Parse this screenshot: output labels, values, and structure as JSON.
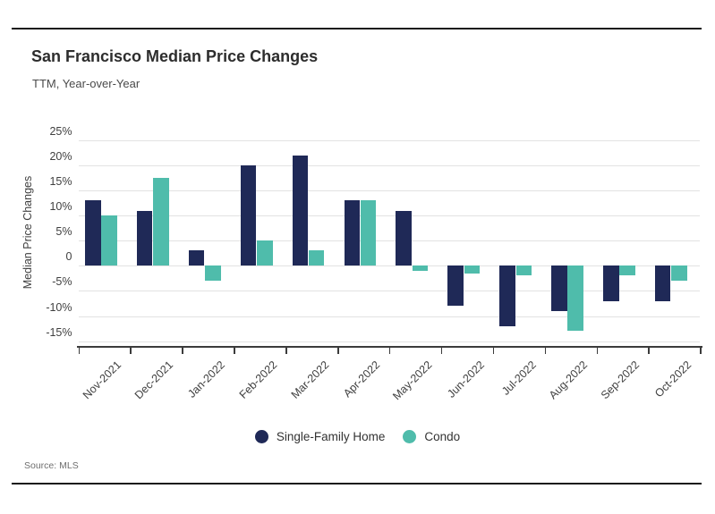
{
  "header": {
    "title": "San Francisco Median Price Changes",
    "subtitle": "TTM, Year-over-Year"
  },
  "y_axis": {
    "label": "Median Price Changes",
    "ticks": [
      {
        "label": "25%",
        "value": 25
      },
      {
        "label": "20%",
        "value": 20
      },
      {
        "label": "15%",
        "value": 15
      },
      {
        "label": "10%",
        "value": 10
      },
      {
        "label": "5%",
        "value": 5
      },
      {
        "label": "0",
        "value": 0
      },
      {
        "label": "-5%",
        "value": -5
      },
      {
        "label": "-10%",
        "value": -10
      },
      {
        "label": "-15%",
        "value": -15
      }
    ]
  },
  "legend": {
    "items": [
      {
        "label": "Single-Family Home",
        "color": "#1f2957"
      },
      {
        "label": "Condo",
        "color": "#4fbcab"
      }
    ]
  },
  "source": {
    "text": "Source: MLS"
  },
  "colors": {
    "single_family": "#1f2957",
    "condo": "#4fbcab",
    "grid": "#e2e2e2",
    "axis": "#3b3b3b"
  },
  "chart_data": {
    "type": "bar",
    "title": "San Francisco Median Price Changes",
    "subtitle": "TTM, Year-over-Year",
    "ylabel": "Median Price Changes",
    "ylim": [
      -16.5,
      26
    ],
    "grid": "horizontal",
    "legend_position": "bottom",
    "categories": [
      "Nov-2021",
      "Dec-2021",
      "Jan-2022",
      "Feb-2022",
      "Mar-2022",
      "Apr-2022",
      "May-2022",
      "Jun-2022",
      "Jul-2022",
      "Aug-2022",
      "Sep-2022",
      "Oct-2022"
    ],
    "series": [
      {
        "name": "Single-Family Home",
        "color": "#1f2957",
        "values": [
          13,
          11,
          3,
          20,
          22,
          13,
          11,
          -8,
          -12,
          -9,
          -7,
          -7
        ]
      },
      {
        "name": "Condo",
        "color": "#4fbcab",
        "values": [
          10,
          17.5,
          -3,
          5,
          3,
          13,
          -1,
          -1.5,
          -2,
          -13,
          -2,
          -3
        ]
      }
    ]
  }
}
